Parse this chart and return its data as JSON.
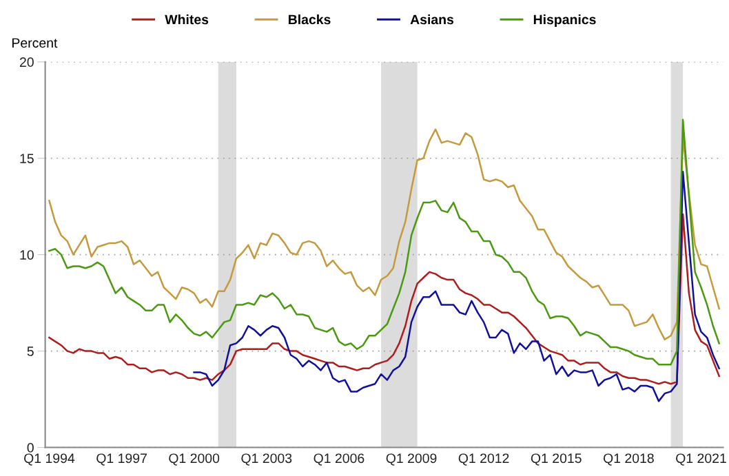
{
  "chart_data": {
    "type": "line",
    "ylabel": "Percent",
    "x": [
      "1994-01",
      "1994-04",
      "1994-07",
      "1994-10",
      "1995-01",
      "1995-04",
      "1995-07",
      "1995-10",
      "1996-01",
      "1996-04",
      "1996-07",
      "1996-10",
      "1997-01",
      "1997-04",
      "1997-07",
      "1997-10",
      "1998-01",
      "1998-04",
      "1998-07",
      "1998-10",
      "1999-01",
      "1999-04",
      "1999-07",
      "1999-10",
      "2000-01",
      "2000-04",
      "2000-07",
      "2000-10",
      "2001-01",
      "2001-04",
      "2001-07",
      "2001-10",
      "2002-01",
      "2002-04",
      "2002-07",
      "2002-10",
      "2003-01",
      "2003-04",
      "2003-07",
      "2003-10",
      "2004-01",
      "2004-04",
      "2004-07",
      "2004-10",
      "2005-01",
      "2005-04",
      "2005-07",
      "2005-10",
      "2006-01",
      "2006-04",
      "2006-07",
      "2006-10",
      "2007-01",
      "2007-04",
      "2007-07",
      "2007-10",
      "2008-01",
      "2008-04",
      "2008-07",
      "2008-10",
      "2009-01",
      "2009-04",
      "2009-07",
      "2009-10",
      "2010-01",
      "2010-04",
      "2010-07",
      "2010-10",
      "2011-01",
      "2011-04",
      "2011-07",
      "2011-10",
      "2012-01",
      "2012-04",
      "2012-07",
      "2012-10",
      "2013-01",
      "2013-04",
      "2013-07",
      "2013-10",
      "2014-01",
      "2014-04",
      "2014-07",
      "2014-10",
      "2015-01",
      "2015-04",
      "2015-07",
      "2015-10",
      "2016-01",
      "2016-04",
      "2016-07",
      "2016-10",
      "2017-01",
      "2017-04",
      "2017-07",
      "2017-10",
      "2018-01",
      "2018-04",
      "2018-07",
      "2018-10",
      "2019-01",
      "2019-04",
      "2019-07",
      "2019-10",
      "2020-01",
      "2020-04",
      "2020-07",
      "2020-10",
      "2021-01",
      "2021-04",
      "2021-07",
      "2021-10"
    ],
    "series": [
      {
        "name": "Whites",
        "color": "#b01c1c",
        "values": [
          5.7,
          5.5,
          5.3,
          5.0,
          4.9,
          5.1,
          5.0,
          5.0,
          4.9,
          4.9,
          4.6,
          4.7,
          4.6,
          4.3,
          4.3,
          4.1,
          4.1,
          3.9,
          4.0,
          4.0,
          3.8,
          3.9,
          3.8,
          3.6,
          3.6,
          3.5,
          3.6,
          3.5,
          3.8,
          4.0,
          4.3,
          5.0,
          5.1,
          5.1,
          5.1,
          5.1,
          5.1,
          5.4,
          5.4,
          5.1,
          5.0,
          5.0,
          4.8,
          4.7,
          4.6,
          4.5,
          4.4,
          4.4,
          4.2,
          4.2,
          4.1,
          4.0,
          4.1,
          4.1,
          4.3,
          4.4,
          4.5,
          4.8,
          5.4,
          6.3,
          7.6,
          8.5,
          8.8,
          9.1,
          9.0,
          8.8,
          8.7,
          8.7,
          8.2,
          8.0,
          7.9,
          7.7,
          7.4,
          7.4,
          7.2,
          7.0,
          7.0,
          6.8,
          6.5,
          6.2,
          5.8,
          5.4,
          5.2,
          5.0,
          4.9,
          4.8,
          4.5,
          4.5,
          4.3,
          4.4,
          4.4,
          4.4,
          4.1,
          3.9,
          3.9,
          3.7,
          3.6,
          3.6,
          3.5,
          3.5,
          3.4,
          3.3,
          3.4,
          3.3,
          3.4,
          12.1,
          8.0,
          6.1,
          5.5,
          5.3,
          4.5,
          3.7
        ]
      },
      {
        "name": "Blacks",
        "color": "#c49a3c",
        "values": [
          12.8,
          11.7,
          11.0,
          10.7,
          10.0,
          10.5,
          11.0,
          9.9,
          10.4,
          10.5,
          10.6,
          10.6,
          10.7,
          10.4,
          9.5,
          9.7,
          9.3,
          8.9,
          9.1,
          8.3,
          8.0,
          7.7,
          8.3,
          8.2,
          8.0,
          7.5,
          7.7,
          7.3,
          8.1,
          8.1,
          8.7,
          9.8,
          10.1,
          10.5,
          9.8,
          10.6,
          10.5,
          11.1,
          11.0,
          10.6,
          10.1,
          10.0,
          10.6,
          10.7,
          10.6,
          10.2,
          9.4,
          9.7,
          9.3,
          9.0,
          9.1,
          8.4,
          8.1,
          8.3,
          7.9,
          8.7,
          8.9,
          9.3,
          10.7,
          11.7,
          13.4,
          14.9,
          15.0,
          15.9,
          16.5,
          15.8,
          15.9,
          15.8,
          15.7,
          16.3,
          16.1,
          15.2,
          13.9,
          13.8,
          13.9,
          13.8,
          13.5,
          13.6,
          12.8,
          12.4,
          12.0,
          11.3,
          11.3,
          10.7,
          10.1,
          9.9,
          9.4,
          9.1,
          8.8,
          8.6,
          8.3,
          8.4,
          7.9,
          7.4,
          7.4,
          7.4,
          7.1,
          6.3,
          6.4,
          6.5,
          6.9,
          6.2,
          5.6,
          5.8,
          6.5,
          16.1,
          13.2,
          10.5,
          9.5,
          9.4,
          8.3,
          7.2
        ]
      },
      {
        "name": "Asians",
        "color": "#1010a0",
        "values": [
          null,
          null,
          null,
          null,
          null,
          null,
          null,
          null,
          null,
          null,
          null,
          null,
          null,
          null,
          null,
          null,
          null,
          null,
          null,
          null,
          null,
          null,
          null,
          null,
          3.9,
          3.9,
          3.8,
          3.2,
          3.5,
          4.0,
          5.3,
          5.4,
          5.7,
          6.3,
          6.1,
          5.8,
          6.1,
          6.3,
          6.2,
          5.7,
          4.8,
          4.6,
          4.2,
          4.5,
          4.3,
          4.0,
          4.4,
          3.6,
          3.4,
          3.5,
          2.9,
          2.9,
          3.1,
          3.2,
          3.3,
          3.8,
          3.5,
          4.0,
          4.2,
          4.7,
          6.5,
          7.3,
          7.8,
          7.8,
          8.1,
          7.4,
          7.4,
          7.4,
          7.0,
          6.9,
          7.6,
          7.0,
          6.5,
          5.7,
          5.7,
          6.1,
          5.9,
          4.9,
          5.4,
          5.1,
          5.5,
          5.5,
          4.5,
          4.8,
          3.8,
          4.2,
          3.7,
          4.0,
          3.9,
          3.9,
          4.0,
          3.2,
          3.5,
          3.6,
          3.8,
          3.0,
          3.1,
          2.9,
          3.2,
          3.2,
          3.1,
          2.4,
          2.8,
          2.9,
          3.3,
          14.3,
          10.6,
          6.9,
          6.0,
          5.7,
          4.8,
          4.1
        ]
      },
      {
        "name": "Hispanics",
        "color": "#4a9a10",
        "values": [
          10.2,
          10.3,
          10.0,
          9.3,
          9.4,
          9.4,
          9.3,
          9.4,
          9.6,
          9.4,
          8.7,
          8.0,
          8.3,
          7.8,
          7.6,
          7.4,
          7.1,
          7.1,
          7.4,
          7.4,
          6.5,
          6.9,
          6.6,
          6.2,
          5.9,
          5.8,
          6.0,
          5.7,
          6.1,
          6.5,
          6.6,
          7.4,
          7.4,
          7.5,
          7.4,
          7.9,
          7.8,
          8.0,
          7.7,
          7.2,
          7.4,
          6.9,
          6.9,
          6.8,
          6.2,
          6.1,
          6.0,
          6.2,
          5.5,
          5.3,
          5.4,
          5.1,
          5.3,
          5.8,
          5.8,
          6.1,
          6.4,
          7.2,
          8.0,
          9.1,
          11.0,
          11.9,
          12.7,
          12.7,
          12.8,
          12.3,
          12.2,
          12.7,
          11.9,
          11.7,
          11.2,
          11.2,
          10.7,
          10.7,
          10.0,
          9.9,
          9.6,
          9.1,
          9.1,
          8.8,
          8.1,
          7.6,
          7.4,
          6.7,
          6.8,
          6.8,
          6.7,
          6.3,
          5.8,
          6.0,
          5.9,
          5.8,
          5.5,
          5.2,
          5.2,
          5.1,
          5.0,
          4.8,
          4.7,
          4.6,
          4.6,
          4.3,
          4.3,
          4.3,
          5.0,
          17.0,
          13.0,
          9.1,
          8.3,
          7.4,
          6.3,
          5.4
        ]
      }
    ],
    "bands": [
      {
        "axis": "x",
        "from": "2001-01",
        "to": "2001-10",
        "color": "#dcdcdc"
      },
      {
        "axis": "x",
        "from": "2007-10",
        "to": "2009-04",
        "color": "#dcdcdc"
      },
      {
        "axis": "x",
        "from": "2019-10",
        "to": "2020-04",
        "color": "#dcdcdc"
      }
    ],
    "xlim": [
      "1993-11",
      "2021-12"
    ],
    "xticks": [
      {
        "value": "1994-01",
        "label": "Q1 1994"
      },
      {
        "value": "1997-01",
        "label": "Q1 1997"
      },
      {
        "value": "2000-01",
        "label": "Q1 2000"
      },
      {
        "value": "2003-01",
        "label": "Q1 2003"
      },
      {
        "value": "2006-01",
        "label": "Q1 2006"
      },
      {
        "value": "2009-01",
        "label": "Q1 2009"
      },
      {
        "value": "2012-01",
        "label": "Q1 2012"
      },
      {
        "value": "2015-01",
        "label": "Q1 2015"
      },
      {
        "value": "2018-01",
        "label": "Q1 2018"
      },
      {
        "value": "2021-01",
        "label": "Q1 2021"
      }
    ],
    "ylim": [
      0,
      20
    ],
    "yticks": [
      0,
      5,
      10,
      15,
      20
    ],
    "grid": "y",
    "legend": "top",
    "marker": "none",
    "line_style": "solid"
  }
}
